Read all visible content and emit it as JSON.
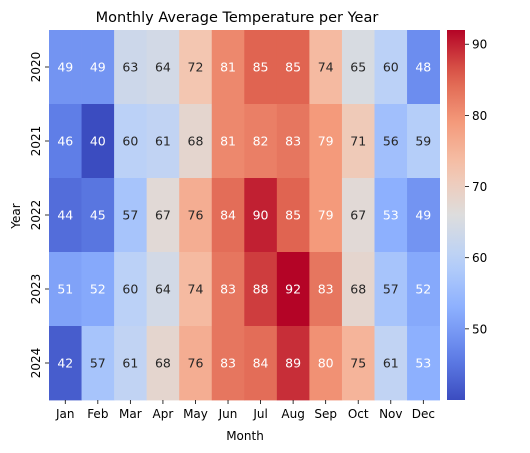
{
  "chart_data": {
    "type": "heatmap",
    "title": "Monthly Average Temperature per Year",
    "xlabel": "Month",
    "ylabel": "Year",
    "x_categories": [
      "Jan",
      "Feb",
      "Mar",
      "Apr",
      "May",
      "Jun",
      "Jul",
      "Aug",
      "Sep",
      "Oct",
      "Nov",
      "Dec"
    ],
    "y_categories": [
      "2020",
      "2021",
      "2022",
      "2023",
      "2024"
    ],
    "values": [
      [
        49,
        49,
        63,
        64,
        72,
        81,
        85,
        85,
        74,
        65,
        60,
        48
      ],
      [
        46,
        40,
        60,
        61,
        68,
        81,
        82,
        83,
        79,
        71,
        56,
        59
      ],
      [
        44,
        45,
        57,
        67,
        76,
        84,
        90,
        85,
        79,
        67,
        53,
        49
      ],
      [
        51,
        52,
        60,
        64,
        74,
        83,
        88,
        92,
        83,
        68,
        57,
        52
      ],
      [
        42,
        57,
        61,
        68,
        76,
        83,
        84,
        89,
        80,
        75,
        61,
        53
      ]
    ],
    "colormap": "coolwarm",
    "value_range": [
      40,
      92
    ],
    "colorbar_ticks": [
      50,
      60,
      70,
      80,
      90
    ],
    "annotations": true
  }
}
